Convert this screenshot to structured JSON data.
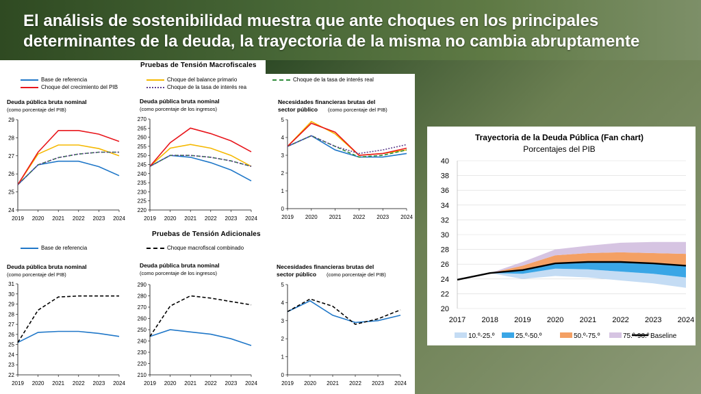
{
  "slide": {
    "title": "El análisis de sostenibilidad muestra que ante choques en los principales determinantes de la deuda, la trayectoria de la misma no cambia abruptamente"
  },
  "macro": {
    "header": "Pruebas de Tensión Macrofiscales",
    "legend": [
      {
        "label": "Base de referencia",
        "color": "#1f77c8",
        "style": "solid"
      },
      {
        "label": "Choque del balance primario",
        "color": "#f5b800",
        "style": "solid"
      },
      {
        "label": "Choque de la tasa de interés real",
        "color": "#2e8b3a",
        "style": "dash"
      },
      {
        "label": "Choque del crecimiento del PIB",
        "color": "#e8161c",
        "style": "solid"
      },
      {
        "label": "Choque de la tasa de interés rea",
        "color": "#5b3c8c",
        "style": "dot"
      }
    ]
  },
  "additional": {
    "header": "Pruebas de Tensión Adicionales",
    "legend": [
      {
        "label": "Base de referencia",
        "color": "#1f77c8",
        "style": "solid"
      },
      {
        "label": "Choque macrofiscal combinado",
        "color": "#000000",
        "style": "dash"
      }
    ]
  },
  "colors": {
    "base": "#1f77c8",
    "primary": "#f5b800",
    "interest": "#2e8b3a",
    "gdp": "#e8161c",
    "interest2": "#5b3c8c",
    "combined": "#000000"
  },
  "chart_data": [
    {
      "id": "m1",
      "type": "line",
      "title": "Deuda pública bruta nominal",
      "subtitle": "(como porcentaje del PIB)",
      "x": [
        "2019",
        "2020",
        "2021",
        "2022",
        "2023",
        "2024"
      ],
      "ylim": [
        24,
        29
      ],
      "yticks": [
        24,
        25,
        26,
        27,
        28,
        29
      ],
      "series": [
        {
          "key": "base",
          "values": [
            25.4,
            26.5,
            26.7,
            26.7,
            26.4,
            25.9
          ]
        },
        {
          "key": "primary",
          "values": [
            25.4,
            27.1,
            27.6,
            27.6,
            27.4,
            27.0
          ]
        },
        {
          "key": "interest",
          "values": [
            25.4,
            26.5,
            26.9,
            27.1,
            27.2,
            27.2
          ]
        },
        {
          "key": "gdp",
          "values": [
            25.4,
            27.2,
            28.4,
            28.4,
            28.2,
            27.8
          ]
        },
        {
          "key": "interest2",
          "values": [
            25.4,
            26.5,
            26.9,
            27.1,
            27.2,
            27.2
          ]
        }
      ]
    },
    {
      "id": "m2",
      "type": "line",
      "title": "Deuda pública bruta nominal",
      "subtitle": "(como porcentaje de los ingresos)",
      "x": [
        "2019",
        "2020",
        "2021",
        "2022",
        "2023",
        "2024"
      ],
      "ylim": [
        220,
        270
      ],
      "yticks": [
        220,
        225,
        230,
        235,
        240,
        245,
        250,
        255,
        260,
        265,
        270
      ],
      "series": [
        {
          "key": "base",
          "values": [
            244,
            250,
            249,
            246,
            242,
            236
          ]
        },
        {
          "key": "primary",
          "values": [
            244,
            254,
            256,
            254,
            250,
            244
          ]
        },
        {
          "key": "interest",
          "values": [
            244,
            250,
            250,
            249,
            247,
            244
          ]
        },
        {
          "key": "gdp",
          "values": [
            244,
            257,
            265,
            262,
            258,
            252
          ]
        },
        {
          "key": "interest2",
          "values": [
            244,
            250,
            250,
            249,
            247,
            244
          ]
        }
      ]
    },
    {
      "id": "m3",
      "type": "line",
      "title": "Necesidades financieras brutas del",
      "title2": "sector público",
      "subtitle": "(como porcentaje del PIB)",
      "x": [
        "2019",
        "2020",
        "2021",
        "2022",
        "2023",
        "2024"
      ],
      "ylim": [
        0,
        5
      ],
      "yticks": [
        0,
        1,
        2,
        3,
        4,
        5
      ],
      "series": [
        {
          "key": "base",
          "values": [
            3.5,
            4.1,
            3.3,
            2.9,
            2.9,
            3.1
          ]
        },
        {
          "key": "primary",
          "values": [
            3.5,
            4.9,
            4.2,
            3.0,
            3.1,
            3.3
          ]
        },
        {
          "key": "interest",
          "values": [
            3.5,
            4.1,
            3.5,
            2.9,
            3.0,
            3.3
          ]
        },
        {
          "key": "gdp",
          "values": [
            3.5,
            4.8,
            4.3,
            3.0,
            3.1,
            3.4
          ]
        },
        {
          "key": "interest2",
          "values": [
            3.5,
            4.1,
            3.5,
            3.1,
            3.3,
            3.6
          ]
        }
      ]
    },
    {
      "id": "a1",
      "type": "line",
      "title": "Deuda pública bruta nominal",
      "subtitle": "(como porcentaje del PIB)",
      "x": [
        "2019",
        "2020",
        "2021",
        "2022",
        "2023",
        "2024"
      ],
      "ylim": [
        22,
        31
      ],
      "yticks": [
        22,
        23,
        24,
        25,
        26,
        27,
        28,
        29,
        30,
        31
      ],
      "series": [
        {
          "key": "base",
          "values": [
            25.2,
            26.2,
            26.3,
            26.3,
            26.1,
            25.8
          ]
        },
        {
          "key": "combined",
          "values": [
            25.2,
            28.4,
            29.7,
            29.8,
            29.8,
            29.8
          ]
        }
      ]
    },
    {
      "id": "a2",
      "type": "line",
      "title": "Deuda pública bruta nominal",
      "subtitle": "(como porcentaje de los ingresos)",
      "x": [
        "2019",
        "2020",
        "2021",
        "2022",
        "2023",
        "2024"
      ],
      "ylim": [
        210,
        290
      ],
      "yticks": [
        210,
        220,
        230,
        240,
        250,
        260,
        270,
        280,
        290
      ],
      "series": [
        {
          "key": "base",
          "values": [
            244,
            250,
            248,
            246,
            242,
            236
          ]
        },
        {
          "key": "combined",
          "values": [
            244,
            271,
            280,
            278,
            275,
            272
          ]
        }
      ]
    },
    {
      "id": "a3",
      "type": "line",
      "title": "Necesidades financieras brutas del",
      "title2": "sector público",
      "subtitle": "(como porcentaje del PIB)",
      "x": [
        "2019",
        "2020",
        "2021",
        "2022",
        "2023",
        "2024"
      ],
      "ylim": [
        0,
        5
      ],
      "yticks": [
        0,
        1,
        2,
        3,
        4,
        5
      ],
      "series": [
        {
          "key": "base",
          "values": [
            3.5,
            4.1,
            3.3,
            2.9,
            3.0,
            3.3
          ]
        },
        {
          "key": "combined",
          "values": [
            3.5,
            4.2,
            3.8,
            2.8,
            3.1,
            3.6
          ]
        }
      ]
    },
    {
      "id": "fan",
      "type": "area",
      "title": "Trayectoria de la Deuda Pública (Fan chart)",
      "subtitle": "Porcentajes del PIB",
      "x": [
        "2017",
        "2018",
        "2019",
        "2020",
        "2021",
        "2022",
        "2023",
        "2024"
      ],
      "ylim": [
        20,
        40
      ],
      "yticks": [
        20,
        22,
        24,
        26,
        28,
        30,
        32,
        34,
        36,
        38,
        40
      ],
      "baseline": [
        23.9,
        24.8,
        25.2,
        26.1,
        26.3,
        26.3,
        26.1,
        25.8
      ],
      "bands": {
        "p10": [
          23.9,
          24.8,
          24.0,
          24.4,
          24.2,
          23.8,
          23.4,
          22.8
        ],
        "p25": [
          23.9,
          24.8,
          24.7,
          25.4,
          25.3,
          25.0,
          24.7,
          24.2
        ],
        "p50": [
          23.9,
          24.8,
          25.2,
          26.1,
          26.3,
          26.3,
          26.1,
          25.8
        ],
        "p75": [
          23.9,
          24.8,
          25.8,
          27.2,
          27.5,
          27.6,
          27.5,
          27.4
        ],
        "p90": [
          23.9,
          24.8,
          26.3,
          28.0,
          28.5,
          28.9,
          29.0,
          29.0
        ]
      },
      "legend": [
        {
          "label": "10.º-25.º",
          "color": "#c4dcf4"
        },
        {
          "label": "25.º-50.º",
          "color": "#3aa6e6"
        },
        {
          "label": "50.º-75.º",
          "color": "#f4a064"
        },
        {
          "label": "75.º-90.º",
          "color": "#d6c4e2"
        },
        {
          "label": "Baseline",
          "color": "#000000"
        }
      ]
    }
  ]
}
